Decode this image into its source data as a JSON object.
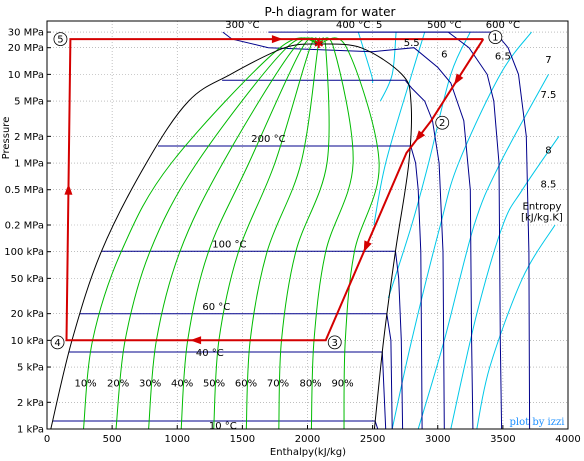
{
  "chart_data": {
    "type": "line",
    "title": "P-h diagram for water",
    "xlabel": "Enthalpy(kJ/kg)",
    "ylabel": "Pressure",
    "xlim": [
      0,
      4000
    ],
    "ylim_kPa": [
      1,
      40000
    ],
    "y_scale": "log",
    "x_ticks": [
      0,
      500,
      1000,
      1500,
      2000,
      2500,
      3000,
      3500,
      4000
    ],
    "y_ticks": [
      {
        "kPa": 1,
        "label": "1 kPa"
      },
      {
        "kPa": 2,
        "label": "2 kPa"
      },
      {
        "kPa": 5,
        "label": "5 kPa"
      },
      {
        "kPa": 10,
        "label": "10 kPa"
      },
      {
        "kPa": 20,
        "label": "20 kPa"
      },
      {
        "kPa": 50,
        "label": "50 kPa"
      },
      {
        "kPa": 100,
        "label": "100 kPa"
      },
      {
        "kPa": 200,
        "label": "0.2 MPa"
      },
      {
        "kPa": 500,
        "label": "0.5 MPa"
      },
      {
        "kPa": 1000,
        "label": "1 MPa"
      },
      {
        "kPa": 2000,
        "label": "2 MPa"
      },
      {
        "kPa": 5000,
        "label": "5 MPa"
      },
      {
        "kPa": 10000,
        "label": "10 MPa"
      },
      {
        "kPa": 20000,
        "label": "20 MPa"
      },
      {
        "kPa": 30000,
        "label": "30 MPa"
      }
    ],
    "grid": "dotted",
    "saturation_dome": {
      "liquid": [
        [
          29,
          1
        ],
        [
          192,
          10
        ],
        [
          417,
          100
        ],
        [
          763,
          1000
        ],
        [
          1087,
          5000
        ],
        [
          1408,
          10000
        ],
        [
          1826,
          20000
        ],
        [
          2087,
          22064
        ]
      ],
      "vapor": [
        [
          2087,
          22064
        ],
        [
          2410,
          20000
        ],
        [
          2725,
          10000
        ],
        [
          2794,
          5000
        ],
        [
          2778,
          1000
        ],
        [
          2675,
          100
        ],
        [
          2584,
          10
        ],
        [
          2514,
          1
        ]
      ]
    },
    "quality_lines": [
      {
        "label": "10%",
        "points": [
          [
            280,
            1
          ],
          [
            350,
            10
          ],
          [
            570,
            100
          ],
          [
            955,
            1000
          ],
          [
            1790,
            20000
          ],
          [
            2087,
            22064
          ]
        ]
      },
      {
        "label": "20%",
        "points": [
          [
            530,
            1
          ],
          [
            600,
            10
          ],
          [
            790,
            100
          ],
          [
            1150,
            1000
          ],
          [
            1840,
            20000
          ],
          [
            2087,
            22064
          ]
        ]
      },
      {
        "label": "30%",
        "points": [
          [
            780,
            1
          ],
          [
            840,
            10
          ],
          [
            1020,
            100
          ],
          [
            1350,
            1000
          ],
          [
            1900,
            20000
          ],
          [
            2087,
            22064
          ]
        ]
      },
      {
        "label": "40%",
        "points": [
          [
            1030,
            1
          ],
          [
            1080,
            10
          ],
          [
            1240,
            100
          ],
          [
            1550,
            1000
          ],
          [
            1960,
            20000
          ],
          [
            2087,
            22064
          ]
        ]
      },
      {
        "label": "50%",
        "points": [
          [
            1280,
            1
          ],
          [
            1320,
            10
          ],
          [
            1470,
            100
          ],
          [
            1750,
            1000
          ],
          [
            2020,
            20000
          ],
          [
            2087,
            22064
          ]
        ]
      },
      {
        "label": "60%",
        "points": [
          [
            1530,
            1
          ],
          [
            1560,
            10
          ],
          [
            1690,
            100
          ],
          [
            1950,
            1000
          ],
          [
            2080,
            20000
          ],
          [
            2087,
            22064
          ]
        ]
      },
      {
        "label": "70%",
        "points": [
          [
            1780,
            1
          ],
          [
            1800,
            10
          ],
          [
            1910,
            100
          ],
          [
            2150,
            1000
          ],
          [
            2140,
            20000
          ],
          [
            2087,
            22064
          ]
        ]
      },
      {
        "label": "80%",
        "points": [
          [
            2030,
            1
          ],
          [
            2050,
            10
          ],
          [
            2140,
            100
          ],
          [
            2350,
            1000
          ],
          [
            2200,
            20000
          ],
          [
            2087,
            22064
          ]
        ]
      },
      {
        "label": "90%",
        "points": [
          [
            2280,
            1
          ],
          [
            2290,
            10
          ],
          [
            2360,
            100
          ],
          [
            2550,
            1000
          ],
          [
            2300,
            20000
          ],
          [
            2087,
            22064
          ]
        ]
      }
    ],
    "isotherms": [
      {
        "label": "10 °C",
        "points": [
          [
            42,
            1.23
          ],
          [
            2519,
            1.23
          ],
          [
            2540,
            1
          ]
        ]
      },
      {
        "label": "40 °C",
        "points": [
          [
            168,
            7.38
          ],
          [
            2574,
            7.38
          ],
          [
            2600,
            1
          ]
        ]
      },
      {
        "label": "60 °C",
        "points": [
          [
            251,
            19.9
          ],
          [
            2609,
            19.9
          ],
          [
            2640,
            10
          ],
          [
            2650,
            1
          ]
        ]
      },
      {
        "label": "100 °C",
        "points": [
          [
            419,
            101
          ],
          [
            2676,
            101
          ],
          [
            2700,
            50
          ],
          [
            2720,
            10
          ],
          [
            2730,
            1
          ]
        ]
      },
      {
        "label": "200 °C",
        "points": [
          [
            852,
            1555
          ],
          [
            2792,
            1555
          ],
          [
            2830,
            1000
          ],
          [
            2850,
            500
          ],
          [
            2870,
            100
          ],
          [
            2875,
            10
          ],
          [
            2880,
            1
          ]
        ]
      },
      {
        "label": "300 °C",
        "points": [
          [
            1344,
            8588
          ],
          [
            2749,
            8588
          ],
          [
            2800,
            7000
          ],
          [
            2900,
            5000
          ],
          [
            2960,
            3000
          ],
          [
            3010,
            1000
          ],
          [
            3040,
            100
          ],
          [
            3050,
            1
          ]
        ]
      },
      {
        "label": "400 °C",
        "points": [
          [
            1350,
            30000
          ],
          [
            1420,
            25000
          ],
          [
            1700,
            20000
          ],
          [
            2500,
            18000
          ],
          [
            2818,
            20000
          ],
          [
            3000,
            12000
          ],
          [
            3100,
            8000
          ],
          [
            3200,
            3000
          ],
          [
            3250,
            500
          ],
          [
            3260,
            10
          ],
          [
            3270,
            1
          ]
        ]
      },
      {
        "label": "500 °C",
        "points": [
          [
            1700,
            30000
          ],
          [
            3080,
            30000
          ],
          [
            3240,
            20000
          ],
          [
            3380,
            10000
          ],
          [
            3430,
            5000
          ],
          [
            3470,
            1000
          ],
          [
            3480,
            10
          ],
          [
            3490,
            1
          ]
        ]
      },
      {
        "label": "600 °C",
        "points": [
          [
            2000,
            30000
          ],
          [
            3440,
            30000
          ],
          [
            3540,
            20000
          ],
          [
            3620,
            10000
          ],
          [
            3680,
            2000
          ],
          [
            3700,
            100
          ],
          [
            3705,
            1
          ]
        ]
      }
    ],
    "isentropes": [
      {
        "label": "5",
        "points": [
          [
            2390,
            30000
          ],
          [
            2490,
            10000
          ],
          [
            2500,
            8000
          ]
        ]
      },
      {
        "label": "5.5",
        "points": [
          [
            2680,
            30000
          ],
          [
            2650,
            10000
          ],
          [
            2560,
            5000
          ]
        ]
      },
      {
        "label": "6",
        "points": [
          [
            2900,
            30000
          ],
          [
            2800,
            10000
          ],
          [
            2600,
            1000
          ],
          [
            2510,
            200
          ]
        ]
      },
      {
        "label": "6.5",
        "points": [
          [
            3250,
            30000
          ],
          [
            3100,
            10000
          ],
          [
            2930,
            1000
          ],
          [
            2800,
            200
          ],
          [
            2620,
            30
          ]
        ]
      },
      {
        "label": "7",
        "points": [
          [
            3720,
            30000
          ],
          [
            3480,
            10000
          ],
          [
            3160,
            1000
          ],
          [
            3020,
            200
          ],
          [
            2800,
            10
          ],
          [
            2650,
            1
          ]
        ]
      },
      {
        "label": "7.5",
        "points": [
          [
            3850,
            10000
          ],
          [
            3480,
            1000
          ],
          [
            3280,
            200
          ],
          [
            3050,
            10
          ],
          [
            2850,
            1
          ]
        ]
      },
      {
        "label": "8",
        "points": [
          [
            3930,
            2000
          ],
          [
            3650,
            500
          ],
          [
            3500,
            200
          ],
          [
            3300,
            20
          ],
          [
            3100,
            1
          ]
        ]
      },
      {
        "label": "8.5",
        "points": [
          [
            3900,
            200
          ],
          [
            3650,
            50
          ],
          [
            3400,
            5
          ],
          [
            3300,
            1
          ]
        ]
      }
    ],
    "entropy_label": [
      "Entropy",
      "[kJ/kg.K]"
    ],
    "cycle": {
      "states": [
        {
          "n": "1",
          "h": 3350,
          "P_kPa": 25000
        },
        {
          "n": "2",
          "h": 2950,
          "P_kPa": 3000
        },
        {
          "n": "3",
          "h": 2140,
          "P_kPa": 10
        },
        {
          "n": "4",
          "h": 150,
          "P_kPa": 10
        },
        {
          "n": "5",
          "h": 180,
          "P_kPa": 25000
        }
      ],
      "path": [
        [
          3350,
          25000
        ],
        [
          2950,
          3000
        ],
        [
          2760,
          1300
        ],
        [
          2140,
          10
        ],
        [
          150,
          10
        ],
        [
          180,
          25000
        ],
        [
          3350,
          25000
        ]
      ],
      "critical_point": {
        "h": 2087,
        "P_kPa": 22064
      }
    }
  },
  "credit": "plot by izzi",
  "colors": {
    "quality": "#00bb00",
    "isotherm": "#00008b",
    "isentrope": "#00c8e8",
    "dome": "#000000",
    "cycle": "#d40000",
    "credit": "#1e90ff"
  }
}
